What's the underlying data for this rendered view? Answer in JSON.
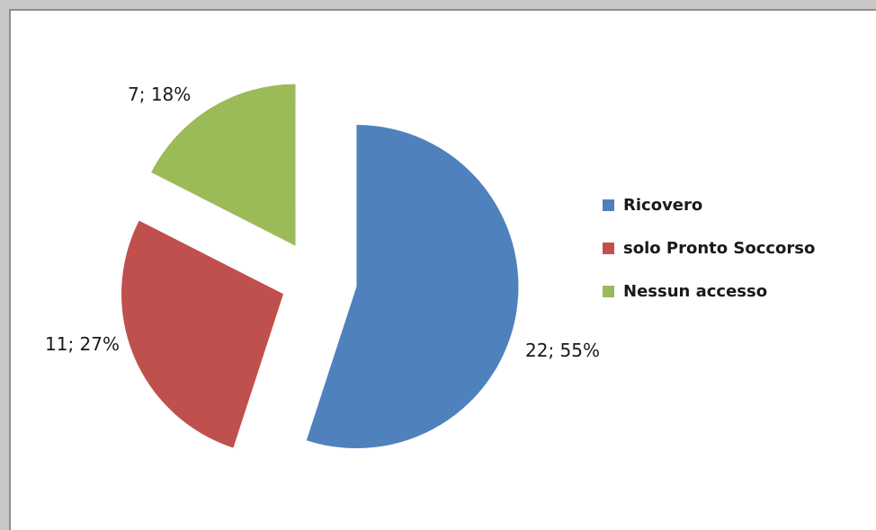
{
  "chart_data": {
    "type": "pie",
    "categories": [
      "Ricovero",
      "solo Pronto Soccorso",
      "Nessun accesso"
    ],
    "values": [
      22,
      11,
      7
    ],
    "percentages": [
      55,
      27,
      18
    ],
    "data_labels": [
      "22; 55%",
      "11; 27%",
      "7; 18%"
    ],
    "colors": [
      "#4f81bd",
      "#c0504d",
      "#9bbb59"
    ],
    "title": "",
    "legend_position": "right",
    "exploded": true
  }
}
